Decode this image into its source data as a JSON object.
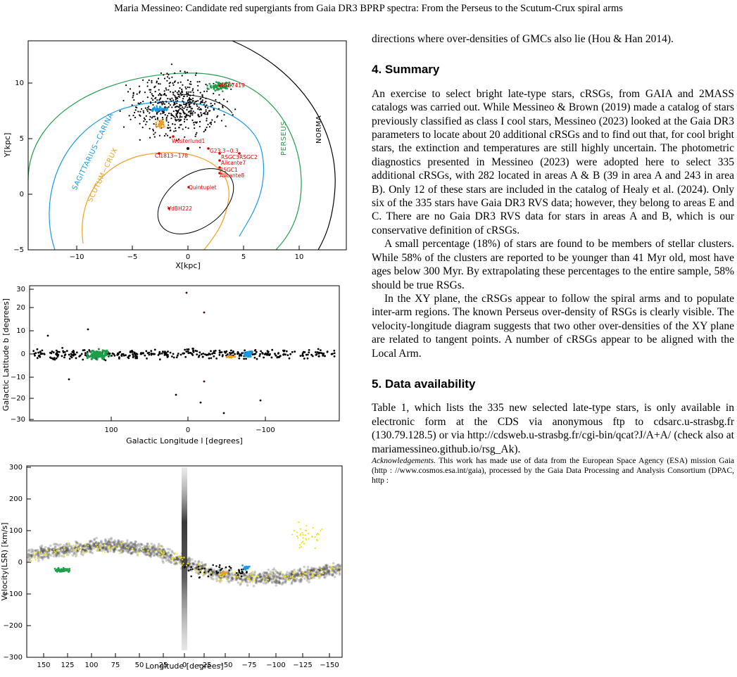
{
  "running_head": "Maria Messineo: Candidate red supergiants from Gaia DR3 BPRP spectra: From the Perseus to the Scutum-Crux spiral arms",
  "figure": {
    "panel_xy": {
      "xlabel": "X[kpc]",
      "ylabel": "Y[kpc]",
      "xticks": [
        "−10",
        "−5",
        "0",
        "5",
        "10"
      ],
      "yticks": [
        "−5",
        "0",
        "5",
        "10"
      ],
      "arm_labels": {
        "sagittarius": "SAGITTARIUS−CARINA",
        "scutum": "SCUTUM−CRUX",
        "perseus": "PERSEUS",
        "norma": "NORMA"
      },
      "cluster_labels": [
        "NGC7419",
        "Westerlund1",
        "Cl1813−178",
        "G23.3−0.3",
        "RSGC3",
        "RSGC2",
        "Alicante7",
        "RSGC1",
        "Alicante8",
        "Quintuplet",
        "VdBH222"
      ]
    },
    "panel_lb": {
      "xlabel": "Galactic Longitude l [degrees]",
      "ylabel": "Galactic Latitude b [degrees]",
      "xticks": [
        "100",
        "0",
        "−100"
      ],
      "yticks": [
        "30",
        "20",
        "10",
        "0",
        "−10",
        "−20",
        "−30"
      ]
    },
    "panel_lv": {
      "xlabel": "Longitude [degrees]",
      "ylabel": "Velocity(LSR) [km/s]",
      "xticks": [
        "150",
        "125",
        "100",
        "75",
        "50",
        "25",
        "0",
        "−25",
        "−50",
        "−75",
        "−100",
        "−125",
        "−150"
      ],
      "yticks": [
        "300",
        "200",
        "100",
        "0",
        "−100",
        "−200",
        "−300"
      ]
    },
    "colors": {
      "green": "#1f9e4a",
      "blue": "#1a9ae0",
      "orange": "#f0a020",
      "red": "#e00000",
      "yellow": "#f0e020"
    }
  },
  "text": {
    "intro_para": "directions where over-densities of GMCs also lie (Hou & Han 2014).",
    "section4_title": "4. Summary",
    "section4_paras": [
      "An exercise to select bright late-type stars, cRSGs, from GAIA and 2MASS catalogs was carried out. While Messineo & Brown (2019) made a catalog of stars previously classified as class I cool stars, Messineo (2023) looked at the Gaia DR3 parameters to locate about 20 additional cRSGs and to find out that, for cool bright stars, the extinction and temperatures are still highly uncertain. The photometric diagnostics presented in Messineo (2023) were adopted here to select 335 additional cRSGs, with 282 located in areas A & B (39 in area A and 243 in area B). Only 12 of these stars are included in the catalog of Healy et al. (2024). Only six of the 335 stars have Gaia DR3 RVS data; however, they belong to areas E and C. There are no Gaia DR3 RVS data for stars in areas A and B, which is our conservative definition of cRSGs.",
      "A small percentage (18%) of stars are found to be members of stellar clusters. While 58% of the clusters are reported to be younger than 41 Myr old, most have ages below 300 Myr. By extrapolating these percentages to the entire sample, 58% should be true RSGs.",
      "In the XY plane, the cRSGs appear to follow the spiral arms and to populate inter-arm regions. The known Perseus over-density of RSGs is clearly visible. The velocity-longitude diagram suggests that two other over-densities of the XY plane are related to tangent points. A number of cRSGs appear to be aligned with the Local Arm."
    ],
    "section5_title": "5. Data availability",
    "section5_para": "Table 1, which lists the 335 new selected late-type stars, is only available in electronic form at the CDS via anonymous ftp to cdsarc.u-strasbg.fr (130.79.128.5) or via http://cdsweb.u-strasbg.fr/cgi-bin/qcat?J/A+A/ (check also at mariamessineo.github.io/rsg_Ak).",
    "ack_label": "Acknowledgements.",
    "ack_text": "This work has made use of data from the European Space Agency (ESA) mission Gaia (http : //www.cosmos.esa.int/gaia), processed by the Gaia Data Processing and Analysis Consortium (DPAC, http :"
  }
}
